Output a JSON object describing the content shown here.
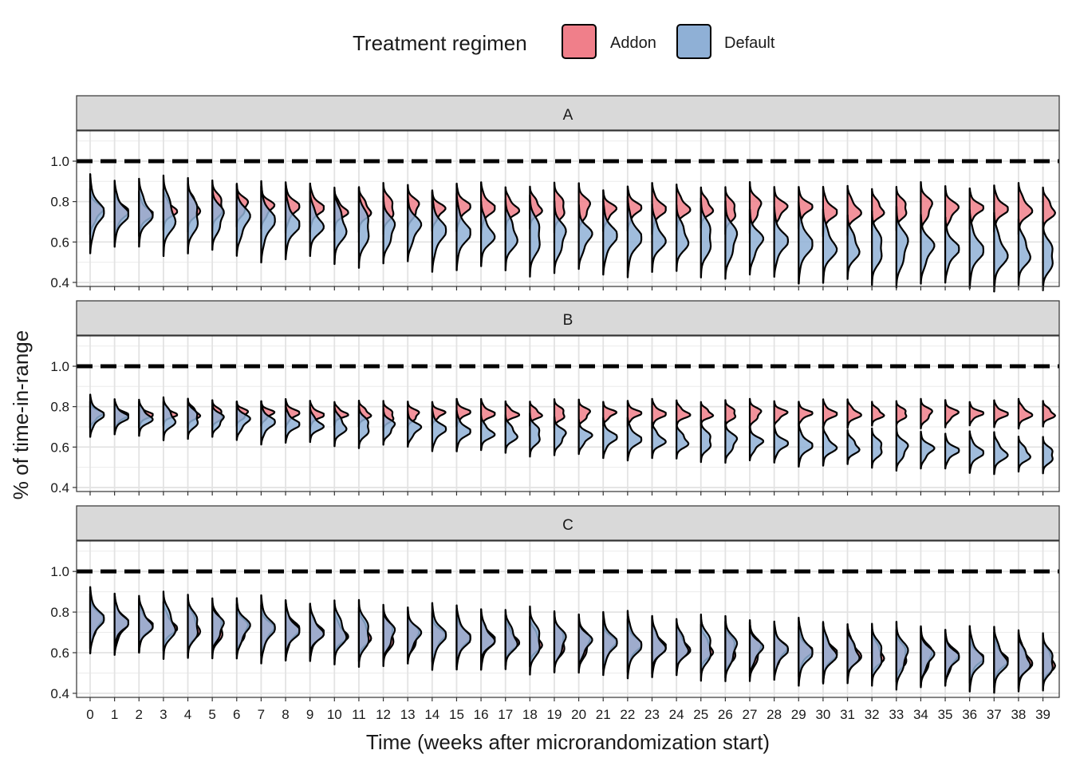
{
  "chart_data": {
    "type": "violin",
    "xlabel": "Time (weeks after microrandomization start)",
    "ylabel": "% of time-in-range",
    "legend": {
      "title": "Treatment regimen",
      "placement": "top",
      "entries": [
        {
          "name": "Addon",
          "color": "#F07F8A"
        },
        {
          "name": "Default",
          "color": "#8FB0D6"
        }
      ]
    },
    "overlap_color": "#8F6F97",
    "x_ticks": [
      "0",
      "1",
      "2",
      "3",
      "4",
      "5",
      "6",
      "7",
      "8",
      "9",
      "10",
      "11",
      "12",
      "13",
      "14",
      "15",
      "16",
      "17",
      "18",
      "19",
      "20",
      "21",
      "22",
      "23",
      "24",
      "25",
      "26",
      "27",
      "28",
      "29",
      "30",
      "31",
      "32",
      "33",
      "34",
      "35",
      "36",
      "37",
      "38",
      "39"
    ],
    "y_ticks": [
      "0.4",
      "0.6",
      "0.8",
      "1.0"
    ],
    "ylim": [
      0.38,
      1.15
    ],
    "reference_line": {
      "y": 1.0,
      "style": "dashed"
    },
    "grid": true,
    "facets": [
      {
        "label": "A",
        "addon": {
          "centers": [
            0.75,
            0.745,
            0.74,
            0.76,
            0.77,
            0.78,
            0.78,
            0.77,
            0.77,
            0.77,
            0.755,
            0.76,
            0.765,
            0.77,
            0.755,
            0.77,
            0.77,
            0.765,
            0.77,
            0.77,
            0.77,
            0.755,
            0.765,
            0.765,
            0.77,
            0.77,
            0.755,
            0.77,
            0.765,
            0.77,
            0.75,
            0.755,
            0.76,
            0.765,
            0.77,
            0.76,
            0.765,
            0.765,
            0.765,
            0.76
          ],
          "sd": 0.038
        },
        "default": {
          "centers": [
            0.74,
            0.74,
            0.745,
            0.73,
            0.73,
            0.72,
            0.71,
            0.7,
            0.69,
            0.69,
            0.68,
            0.67,
            0.66,
            0.67,
            0.65,
            0.65,
            0.64,
            0.635,
            0.63,
            0.625,
            0.625,
            0.625,
            0.625,
            0.62,
            0.62,
            0.62,
            0.61,
            0.6,
            0.6,
            0.595,
            0.58,
            0.575,
            0.57,
            0.575,
            0.565,
            0.56,
            0.565,
            0.55,
            0.55,
            0.53
          ],
          "sd": 0.06
        }
      },
      {
        "label": "B",
        "addon": {
          "centers": [
            0.76,
            0.755,
            0.76,
            0.765,
            0.765,
            0.76,
            0.765,
            0.765,
            0.765,
            0.76,
            0.765,
            0.765,
            0.755,
            0.76,
            0.765,
            0.77,
            0.765,
            0.765,
            0.765,
            0.765,
            0.765,
            0.765,
            0.765,
            0.765,
            0.765,
            0.765,
            0.765,
            0.765,
            0.765,
            0.765,
            0.765,
            0.765,
            0.765,
            0.765,
            0.765,
            0.765,
            0.765,
            0.765,
            0.765,
            0.765
          ],
          "sd": 0.022
        },
        "default": {
          "centers": [
            0.755,
            0.75,
            0.745,
            0.74,
            0.74,
            0.735,
            0.73,
            0.72,
            0.715,
            0.71,
            0.705,
            0.7,
            0.7,
            0.69,
            0.685,
            0.68,
            0.67,
            0.665,
            0.66,
            0.655,
            0.65,
            0.645,
            0.64,
            0.635,
            0.63,
            0.63,
            0.625,
            0.62,
            0.615,
            0.61,
            0.605,
            0.6,
            0.595,
            0.59,
            0.585,
            0.58,
            0.575,
            0.57,
            0.565,
            0.56
          ],
          "sd": 0.032
        }
      },
      {
        "label": "C",
        "addon": {
          "centers": [
            0.755,
            0.74,
            0.735,
            0.73,
            0.725,
            0.72,
            0.715,
            0.71,
            0.71,
            0.7,
            0.69,
            0.69,
            0.685,
            0.68,
            0.675,
            0.67,
            0.665,
            0.66,
            0.655,
            0.65,
            0.645,
            0.64,
            0.635,
            0.63,
            0.625,
            0.62,
            0.615,
            0.61,
            0.61,
            0.605,
            0.6,
            0.595,
            0.59,
            0.585,
            0.58,
            0.575,
            0.57,
            0.565,
            0.56,
            0.555
          ],
          "sd": 0.045
        },
        "default": {
          "centers": [
            0.76,
            0.75,
            0.74,
            0.735,
            0.73,
            0.725,
            0.72,
            0.715,
            0.71,
            0.705,
            0.7,
            0.695,
            0.69,
            0.685,
            0.68,
            0.675,
            0.67,
            0.665,
            0.66,
            0.655,
            0.65,
            0.645,
            0.64,
            0.635,
            0.63,
            0.625,
            0.62,
            0.615,
            0.61,
            0.605,
            0.6,
            0.595,
            0.59,
            0.585,
            0.58,
            0.575,
            0.57,
            0.565,
            0.56,
            0.555
          ],
          "sd": 0.05
        }
      }
    ]
  }
}
